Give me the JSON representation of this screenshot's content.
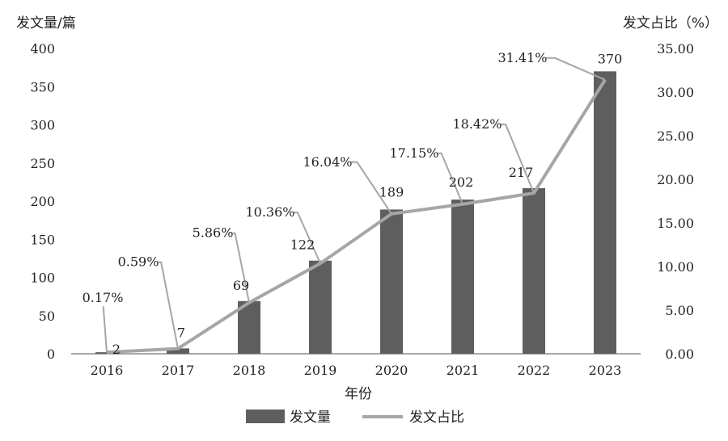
{
  "chart_data": {
    "type": "bar",
    "title": "",
    "xlabel": "年份",
    "ylabel_left": "发文量/篇",
    "ylabel_right": "发文占比（%）",
    "categories": [
      "2016",
      "2017",
      "2018",
      "2019",
      "2020",
      "2021",
      "2022",
      "2023"
    ],
    "ylim_left": [
      0,
      400
    ],
    "yticks_left": [
      "0",
      "50",
      "100",
      "150",
      "200",
      "250",
      "300",
      "350",
      "400"
    ],
    "ylim_right": [
      0,
      35
    ],
    "yticks_right": [
      "0.00",
      "5.00",
      "10.00",
      "15.00",
      "20.00",
      "25.00",
      "30.00",
      "35.00"
    ],
    "grid": false,
    "legend_position": "bottom",
    "series": [
      {
        "name": "发文量",
        "type": "bar",
        "axis": "left",
        "color": "#5e5e5e",
        "values": [
          2,
          7,
          69,
          122,
          189,
          202,
          217,
          370
        ],
        "labels": [
          "2",
          "7",
          "69",
          "122",
          "189",
          "202",
          "217",
          "370"
        ]
      },
      {
        "name": "发文占比",
        "type": "line",
        "axis": "right",
        "color": "#a6a6a6",
        "values": [
          0.17,
          0.59,
          5.86,
          10.36,
          16.04,
          17.15,
          18.42,
          31.41
        ],
        "labels": [
          "0.17%",
          "0.59%",
          "5.86%",
          "10.36%",
          "16.04%",
          "17.15%",
          "18.42%",
          "31.41%"
        ]
      }
    ]
  }
}
